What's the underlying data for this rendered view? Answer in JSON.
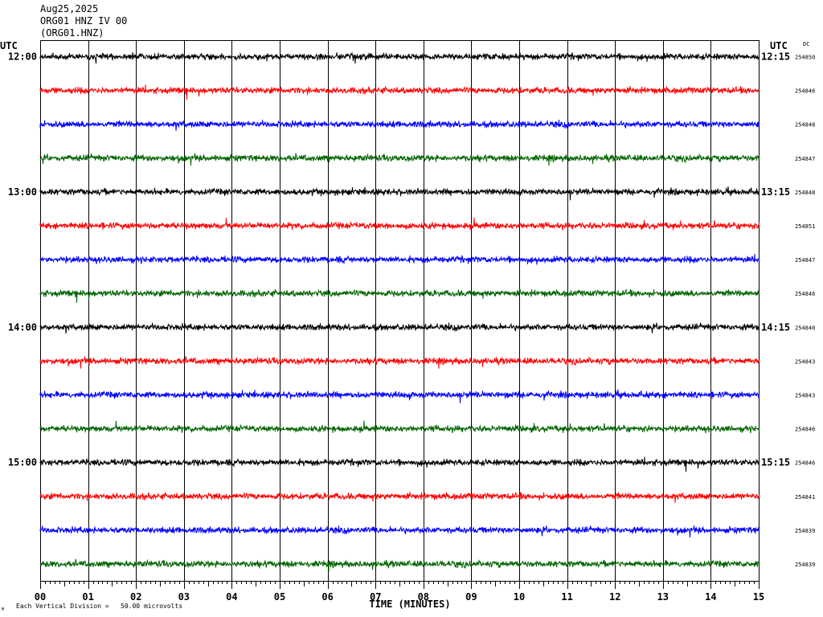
{
  "header": {
    "date": "Aug25,2025",
    "station_line": "ORG01 HNZ IV 00",
    "station_code": "(ORG01.HNZ)"
  },
  "left_axis_title": "UTC",
  "right_axis_title": "UTC",
  "dc_title": "DC",
  "footer": {
    "scale_note": "Each Vertical Division =   50.00 microvolts",
    "corner_mark": "M"
  },
  "chart_data": {
    "type": "line",
    "title": "",
    "xlabel": "TIME (MINUTES)",
    "ylabel": "",
    "xlim": [
      0,
      15
    ],
    "x_ticks": [
      "00",
      "01",
      "02",
      "03",
      "04",
      "05",
      "06",
      "07",
      "08",
      "09",
      "10",
      "11",
      "12",
      "13",
      "14",
      "15"
    ],
    "grid": "vertical lines each minute",
    "trace_colors": [
      "#000000",
      "#ff0000",
      "#0000ff",
      "#006400"
    ],
    "rows": [
      {
        "left": "12:00",
        "right": "12:15",
        "dc": "254850"
      },
      {
        "left": "",
        "right": "",
        "dc": "254846"
      },
      {
        "left": "",
        "right": "",
        "dc": "254848"
      },
      {
        "left": "",
        "right": "",
        "dc": "254847"
      },
      {
        "left": "13:00",
        "right": "13:15",
        "dc": "254848"
      },
      {
        "left": "",
        "right": "",
        "dc": "254851"
      },
      {
        "left": "",
        "right": "",
        "dc": "254847"
      },
      {
        "left": "",
        "right": "",
        "dc": "254846"
      },
      {
        "left": "14:00",
        "right": "14:15",
        "dc": "254840"
      },
      {
        "left": "",
        "right": "",
        "dc": "254843"
      },
      {
        "left": "",
        "right": "",
        "dc": "254843"
      },
      {
        "left": "",
        "right": "",
        "dc": "254846"
      },
      {
        "left": "15:00",
        "right": "15:15",
        "dc": "254846"
      },
      {
        "left": "",
        "right": "",
        "dc": "254841"
      },
      {
        "left": "",
        "right": "",
        "dc": "254839"
      },
      {
        "left": "",
        "right": "",
        "dc": "254839"
      }
    ]
  }
}
